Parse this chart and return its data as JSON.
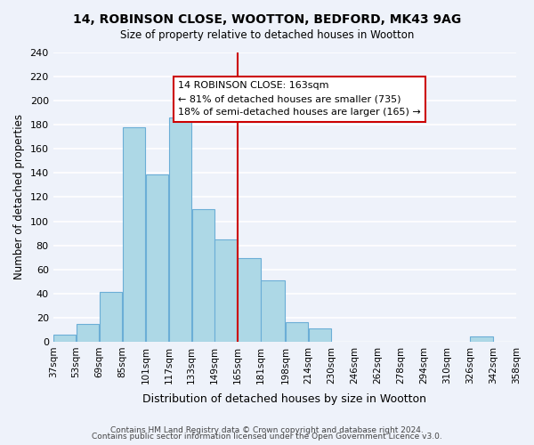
{
  "title": "14, ROBINSON CLOSE, WOOTTON, BEDFORD, MK43 9AG",
  "subtitle": "Size of property relative to detached houses in Wootton",
  "xlabel": "Distribution of detached houses by size in Wootton",
  "ylabel": "Number of detached properties",
  "bar_edges": [
    37,
    53,
    69,
    85,
    101,
    117,
    133,
    149,
    165,
    181,
    198,
    214,
    230,
    246,
    262,
    278,
    294,
    310,
    326,
    342,
    358
  ],
  "bar_heights": [
    6,
    15,
    41,
    178,
    139,
    186,
    110,
    85,
    69,
    51,
    16,
    11,
    0,
    0,
    0,
    0,
    0,
    0,
    4,
    0
  ],
  "bar_color": "#add8e6",
  "bar_edge_color": "#6baed6",
  "vline_x": 165,
  "vline_color": "#cc0000",
  "ylim": [
    0,
    240
  ],
  "yticks": [
    0,
    20,
    40,
    60,
    80,
    100,
    120,
    140,
    160,
    180,
    200,
    220,
    240
  ],
  "tick_labels": [
    "37sqm",
    "53sqm",
    "69sqm",
    "85sqm",
    "101sqm",
    "117sqm",
    "133sqm",
    "149sqm",
    "165sqm",
    "181sqm",
    "198sqm",
    "214sqm",
    "230sqm",
    "246sqm",
    "262sqm",
    "278sqm",
    "294sqm",
    "310sqm",
    "326sqm",
    "342sqm",
    "358sqm"
  ],
  "annotation_title": "14 ROBINSON CLOSE: 163sqm",
  "annotation_line1": "← 81% of detached houses are smaller (735)",
  "annotation_line2": "18% of semi-detached houses are larger (165) →",
  "annotation_box_color": "#ffffff",
  "annotation_box_edge": "#cc0000",
  "footer_line1": "Contains HM Land Registry data © Crown copyright and database right 2024.",
  "footer_line2": "Contains public sector information licensed under the Open Government Licence v3.0.",
  "bg_color": "#eef2fa",
  "plot_bg_color": "#eef2fa"
}
